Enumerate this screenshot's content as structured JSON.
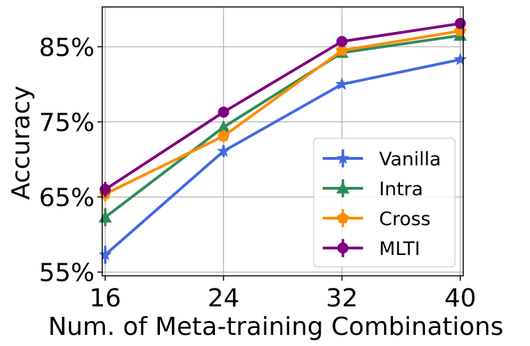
{
  "chart_data": {
    "type": "line",
    "title": "",
    "xlabel": "Num. of Meta-training Combinations",
    "ylabel": "Accuracy",
    "x": [
      16,
      24,
      32,
      40
    ],
    "x_tick_labels": [
      "16",
      "24",
      "32",
      "40"
    ],
    "y_ticks": [
      55,
      65,
      75,
      85
    ],
    "y_tick_labels": [
      "55%",
      "65%",
      "75%",
      "85%"
    ],
    "xlim": [
      15.8,
      40.2
    ],
    "ylim": [
      54.5,
      90.3
    ],
    "grid": true,
    "legend_position": "lower-right",
    "series": [
      {
        "name": "Vanilla",
        "color": "#4169e1",
        "marker": "star",
        "values": [
          57.3,
          71.1,
          80.0,
          83.3
        ],
        "errors": [
          1.2,
          0.8,
          0.4,
          0.3
        ]
      },
      {
        "name": "Intra",
        "color": "#2e8b57",
        "marker": "triangle",
        "values": [
          62.3,
          74.3,
          84.2,
          86.5
        ],
        "errors": [
          1.2,
          0.8,
          0.4,
          0.3
        ]
      },
      {
        "name": "Cross",
        "color": "#ff8c00",
        "marker": "pentagon",
        "values": [
          65.4,
          73.1,
          84.5,
          87.1
        ],
        "errors": [
          1.0,
          0.8,
          0.4,
          0.3
        ]
      },
      {
        "name": "MLTI",
        "color": "#800080",
        "marker": "circle",
        "values": [
          66.0,
          76.3,
          85.7,
          88.1
        ],
        "errors": [
          1.0,
          0.6,
          0.3,
          0.3
        ]
      }
    ]
  }
}
